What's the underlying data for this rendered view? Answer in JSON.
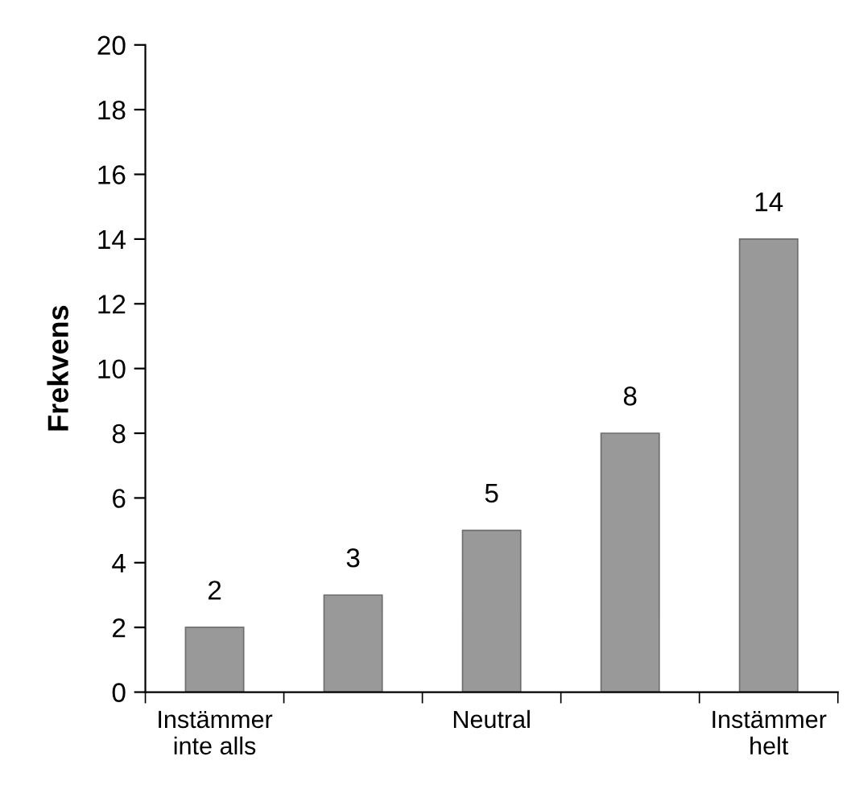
{
  "chart_data": {
    "type": "bar",
    "ylabel": "Frekvens",
    "categories": [
      "Instämmer\ninte alls",
      null,
      "Neutral",
      null,
      "Instämmer\nhelt"
    ],
    "values": [
      2,
      3,
      5,
      8,
      14
    ],
    "color": "#999999",
    "ylim": [
      0,
      20
    ],
    "yticks": [
      0,
      2,
      4,
      6,
      8,
      10,
      12,
      14,
      16,
      18,
      20
    ],
    "data_labels": true,
    "grid": false,
    "legend": false
  }
}
